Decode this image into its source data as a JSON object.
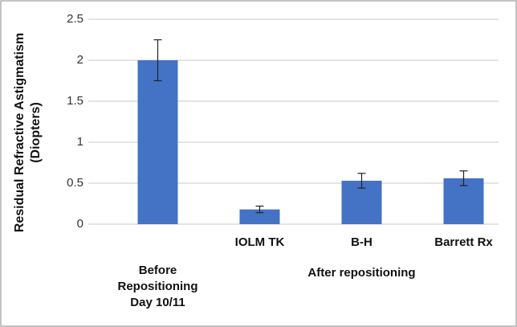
{
  "chart_data": {
    "type": "bar",
    "ylabel": "Residual Refractive Astigmatism (Diopters)",
    "categories": [
      "Before Repositioning Day 10/11",
      "IOLM TK",
      "B-H",
      "Barrett Rx"
    ],
    "values": [
      2.0,
      0.18,
      0.53,
      0.56
    ],
    "errors": [
      0.25,
      0.04,
      0.09,
      0.09
    ],
    "group_label": "After repositioning",
    "color": "#4472c4",
    "ylim": [
      0,
      2.5
    ],
    "yticks": [
      0,
      0.5,
      1,
      1.5,
      2,
      2.5
    ],
    "grid": true
  }
}
